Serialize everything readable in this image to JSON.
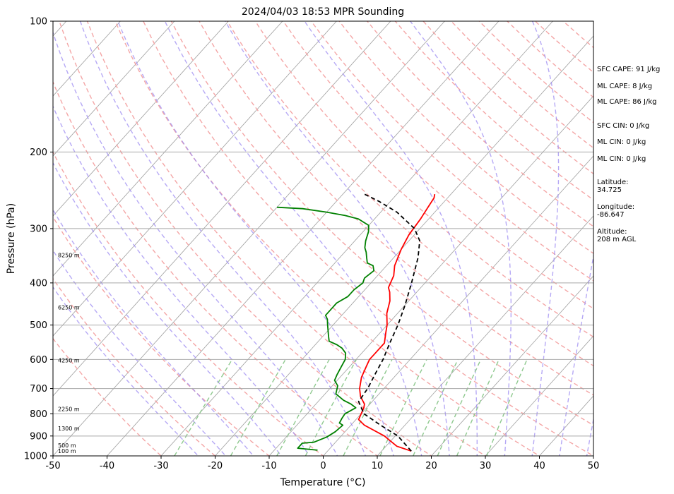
{
  "chart_data": {
    "type": "line",
    "title": "2024/04/03 18:53 MPR Sounding",
    "xlabel": "Temperature (°C)",
    "ylabel": "Pressure (hPa)",
    "xlim": [
      -50,
      50
    ],
    "ylim": [
      1000,
      100
    ],
    "y_scale": "log",
    "skew": "skew-T log-P",
    "x_ticks": [
      -50,
      -40,
      -30,
      -20,
      -10,
      0,
      10,
      20,
      30,
      40,
      50
    ],
    "y_ticks": [
      100,
      200,
      300,
      400,
      500,
      600,
      700,
      800,
      900,
      1000
    ],
    "grid": true,
    "height_labels": [
      "8250 m",
      "6250 m",
      "4250 m",
      "2250 m",
      "1300 m",
      "500 m",
      "100 m"
    ],
    "height_label_pressures": [
      345,
      455,
      603,
      780,
      865,
      945,
      975
    ],
    "series": [
      {
        "role": "temperature",
        "color": "#ff0000",
        "points": [
          [
            15.5,
            975
          ],
          [
            12,
            950
          ],
          [
            8,
            900
          ],
          [
            2.5,
            850
          ],
          [
            0.5,
            825
          ],
          [
            -0.5,
            775
          ],
          [
            -1,
            760
          ],
          [
            -3,
            730
          ],
          [
            -4.5,
            700
          ],
          [
            -6,
            660
          ],
          [
            -7,
            620
          ],
          [
            -7.5,
            600
          ],
          [
            -7.5,
            580
          ],
          [
            -7.5,
            550
          ],
          [
            -9,
            520
          ],
          [
            -10,
            500
          ],
          [
            -12,
            470
          ],
          [
            -13.5,
            440
          ],
          [
            -15,
            420
          ],
          [
            -16,
            410
          ],
          [
            -17,
            385
          ],
          [
            -18.5,
            365
          ],
          [
            -20,
            335
          ],
          [
            -21,
            310
          ],
          [
            -21.5,
            285
          ],
          [
            -22,
            270
          ],
          [
            -22.5,
            255
          ],
          [
            -23,
            250
          ]
        ]
      },
      {
        "role": "dewpoint",
        "color": "#008000",
        "points": [
          [
            -2,
            970
          ],
          [
            -6,
            960
          ],
          [
            -6,
            935
          ],
          [
            -4,
            930
          ],
          [
            -2.5,
            905
          ],
          [
            -1.8,
            880
          ],
          [
            -1.5,
            850
          ],
          [
            -2.5,
            840
          ],
          [
            -2.8,
            820
          ],
          [
            -3,
            800
          ],
          [
            -2,
            775
          ],
          [
            -3.5,
            760
          ],
          [
            -5.5,
            745
          ],
          [
            -8,
            720
          ],
          [
            -9,
            690
          ],
          [
            -10.5,
            670
          ],
          [
            -11,
            650
          ],
          [
            -11.5,
            625
          ],
          [
            -12,
            600
          ],
          [
            -13,
            580
          ],
          [
            -14.5,
            565
          ],
          [
            -16,
            555
          ],
          [
            -18,
            545
          ],
          [
            -19,
            530
          ],
          [
            -21,
            500
          ],
          [
            -22,
            485
          ],
          [
            -23,
            475
          ],
          [
            -23,
            460
          ],
          [
            -23,
            445
          ],
          [
            -22,
            430
          ],
          [
            -22,
            415
          ],
          [
            -21.5,
            400
          ],
          [
            -22,
            390
          ],
          [
            -21.5,
            375
          ],
          [
            -22.5,
            365
          ],
          [
            -24,
            360
          ],
          [
            -25,
            350
          ],
          [
            -26,
            340
          ],
          [
            -27,
            332
          ],
          [
            -28,
            320
          ],
          [
            -29,
            305
          ],
          [
            -30,
            295
          ],
          [
            -33,
            285
          ],
          [
            -36,
            280
          ],
          [
            -40,
            275
          ],
          [
            -45,
            270
          ],
          [
            -50,
            268
          ]
        ]
      },
      {
        "role": "parcel-profile",
        "color": "#000000",
        "points": [
          [
            15.5,
            975
          ],
          [
            10.5,
            900
          ],
          [
            5.5,
            850
          ],
          [
            0.5,
            800
          ],
          [
            -2.5,
            750
          ],
          [
            -3,
            700
          ],
          [
            -4,
            650
          ],
          [
            -5,
            600
          ],
          [
            -6.5,
            550
          ],
          [
            -8,
            500
          ],
          [
            -10,
            450
          ],
          [
            -12.5,
            400
          ],
          [
            -15.5,
            350
          ],
          [
            -18,
            320
          ],
          [
            -21,
            300
          ],
          [
            -27,
            275
          ],
          [
            -32,
            260
          ],
          [
            -36,
            250
          ]
        ]
      }
    ]
  },
  "annotations": {
    "sfc_cape": "SFC CAPE: 91 J/kg",
    "ml_cape_1": "ML CAPE: 8 J/kg",
    "ml_cape_2": "ML CAPE: 86 J/kg",
    "sfc_cin": "SFC CIN: 0 J/kg",
    "ml_cin_1": "ML CIN: 0 J/kg",
    "ml_cin_2": "ML CIN: 0 J/kg",
    "latitude_label": "Latitude:",
    "latitude": "34.725",
    "longitude_label": "Longitude:",
    "longitude": "-86.647",
    "altitude_label": "Altitude:",
    "altitude": "208 m AGL"
  },
  "colors": {
    "dry_adiabat": "#f4a6a6",
    "moist_adiabat": "#9d8cf2",
    "mixing_ratio": "#8fc98f",
    "isotherm": "#a0a0a0",
    "isobar": "#a9a9a9"
  }
}
